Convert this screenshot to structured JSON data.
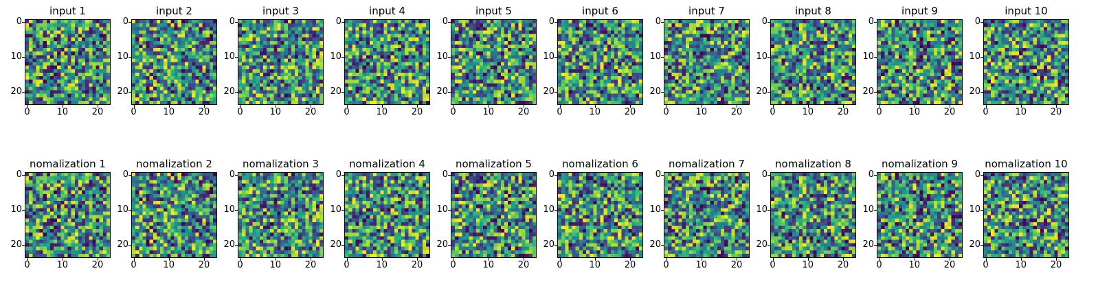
{
  "figure": {
    "background": "#ffffff",
    "rows": [
      {
        "name": "input-row"
      },
      {
        "name": "nomalization-row"
      }
    ],
    "colors": {
      "axis": "#000000",
      "colormap_low": "#440154",
      "colormap_mid": "#21918c",
      "colormap_high": "#fde725"
    }
  },
  "chart_data": [
    {
      "type": "heatmap",
      "title": "input 1",
      "grid_rows": 24,
      "grid_cols": 24,
      "x_ticks": [
        0,
        10,
        20
      ],
      "y_ticks": [
        0,
        10,
        20
      ],
      "colormap": "viridis",
      "value_range": [
        0,
        1
      ],
      "seed": 1
    },
    {
      "type": "heatmap",
      "title": "input 2",
      "grid_rows": 24,
      "grid_cols": 24,
      "x_ticks": [
        0,
        10,
        20
      ],
      "y_ticks": [
        0,
        10,
        20
      ],
      "colormap": "viridis",
      "value_range": [
        0,
        1
      ],
      "seed": 2
    },
    {
      "type": "heatmap",
      "title": "input 3",
      "grid_rows": 24,
      "grid_cols": 24,
      "x_ticks": [
        0,
        10,
        20
      ],
      "y_ticks": [
        0,
        10,
        20
      ],
      "colormap": "viridis",
      "value_range": [
        0,
        1
      ],
      "seed": 3
    },
    {
      "type": "heatmap",
      "title": "input 4",
      "grid_rows": 24,
      "grid_cols": 24,
      "x_ticks": [
        0,
        10,
        20
      ],
      "y_ticks": [
        0,
        10,
        20
      ],
      "colormap": "viridis",
      "value_range": [
        0,
        1
      ],
      "seed": 4
    },
    {
      "type": "heatmap",
      "title": "input 5",
      "grid_rows": 24,
      "grid_cols": 24,
      "x_ticks": [
        0,
        10,
        20
      ],
      "y_ticks": [
        0,
        10,
        20
      ],
      "colormap": "viridis",
      "value_range": [
        0,
        1
      ],
      "seed": 5
    },
    {
      "type": "heatmap",
      "title": "input 6",
      "grid_rows": 24,
      "grid_cols": 24,
      "x_ticks": [
        0,
        10,
        20
      ],
      "y_ticks": [
        0,
        10,
        20
      ],
      "colormap": "viridis",
      "value_range": [
        0,
        1
      ],
      "seed": 6
    },
    {
      "type": "heatmap",
      "title": "input 7",
      "grid_rows": 24,
      "grid_cols": 24,
      "x_ticks": [
        0,
        10,
        20
      ],
      "y_ticks": [
        0,
        10,
        20
      ],
      "colormap": "viridis",
      "value_range": [
        0,
        1
      ],
      "seed": 7
    },
    {
      "type": "heatmap",
      "title": "input 8",
      "grid_rows": 24,
      "grid_cols": 24,
      "x_ticks": [
        0,
        10,
        20
      ],
      "y_ticks": [
        0,
        10,
        20
      ],
      "colormap": "viridis",
      "value_range": [
        0,
        1
      ],
      "seed": 8
    },
    {
      "type": "heatmap",
      "title": "input 9",
      "grid_rows": 24,
      "grid_cols": 24,
      "x_ticks": [
        0,
        10,
        20
      ],
      "y_ticks": [
        0,
        10,
        20
      ],
      "colormap": "viridis",
      "value_range": [
        0,
        1
      ],
      "seed": 9
    },
    {
      "type": "heatmap",
      "title": "input 10",
      "grid_rows": 24,
      "grid_cols": 24,
      "x_ticks": [
        0,
        10,
        20
      ],
      "y_ticks": [
        0,
        10,
        20
      ],
      "colormap": "viridis",
      "value_range": [
        0,
        1
      ],
      "seed": 10
    },
    {
      "type": "heatmap",
      "title": "nomalization 1",
      "grid_rows": 24,
      "grid_cols": 24,
      "x_ticks": [
        0,
        10,
        20
      ],
      "y_ticks": [
        0,
        10,
        20
      ],
      "colormap": "viridis",
      "value_range": [
        0,
        1
      ],
      "seed": 1
    },
    {
      "type": "heatmap",
      "title": "nomalization 2",
      "grid_rows": 24,
      "grid_cols": 24,
      "x_ticks": [
        0,
        10,
        20
      ],
      "y_ticks": [
        0,
        10,
        20
      ],
      "colormap": "viridis",
      "value_range": [
        0,
        1
      ],
      "seed": 2
    },
    {
      "type": "heatmap",
      "title": "nomalization 3",
      "grid_rows": 24,
      "grid_cols": 24,
      "x_ticks": [
        0,
        10,
        20
      ],
      "y_ticks": [
        0,
        10,
        20
      ],
      "colormap": "viridis",
      "value_range": [
        0,
        1
      ],
      "seed": 3
    },
    {
      "type": "heatmap",
      "title": "nomalization 4",
      "grid_rows": 24,
      "grid_cols": 24,
      "x_ticks": [
        0,
        10,
        20
      ],
      "y_ticks": [
        0,
        10,
        20
      ],
      "colormap": "viridis",
      "value_range": [
        0,
        1
      ],
      "seed": 4
    },
    {
      "type": "heatmap",
      "title": "nomalization 5",
      "grid_rows": 24,
      "grid_cols": 24,
      "x_ticks": [
        0,
        10,
        20
      ],
      "y_ticks": [
        0,
        10,
        20
      ],
      "colormap": "viridis",
      "value_range": [
        0,
        1
      ],
      "seed": 5
    },
    {
      "type": "heatmap",
      "title": "nomalization 6",
      "grid_rows": 24,
      "grid_cols": 24,
      "x_ticks": [
        0,
        10,
        20
      ],
      "y_ticks": [
        0,
        10,
        20
      ],
      "colormap": "viridis",
      "value_range": [
        0,
        1
      ],
      "seed": 6
    },
    {
      "type": "heatmap",
      "title": "nomalization 7",
      "grid_rows": 24,
      "grid_cols": 24,
      "x_ticks": [
        0,
        10,
        20
      ],
      "y_ticks": [
        0,
        10,
        20
      ],
      "colormap": "viridis",
      "value_range": [
        0,
        1
      ],
      "seed": 7
    },
    {
      "type": "heatmap",
      "title": "nomalization 8",
      "grid_rows": 24,
      "grid_cols": 24,
      "x_ticks": [
        0,
        10,
        20
      ],
      "y_ticks": [
        0,
        10,
        20
      ],
      "colormap": "viridis",
      "value_range": [
        0,
        1
      ],
      "seed": 8
    },
    {
      "type": "heatmap",
      "title": "nomalization 9",
      "grid_rows": 24,
      "grid_cols": 24,
      "x_ticks": [
        0,
        10,
        20
      ],
      "y_ticks": [
        0,
        10,
        20
      ],
      "colormap": "viridis",
      "value_range": [
        0,
        1
      ],
      "seed": 9
    },
    {
      "type": "heatmap",
      "title": "nomalization 10",
      "grid_rows": 24,
      "grid_cols": 24,
      "x_ticks": [
        0,
        10,
        20
      ],
      "y_ticks": [
        0,
        10,
        20
      ],
      "colormap": "viridis",
      "value_range": [
        0,
        1
      ],
      "seed": 10
    }
  ]
}
